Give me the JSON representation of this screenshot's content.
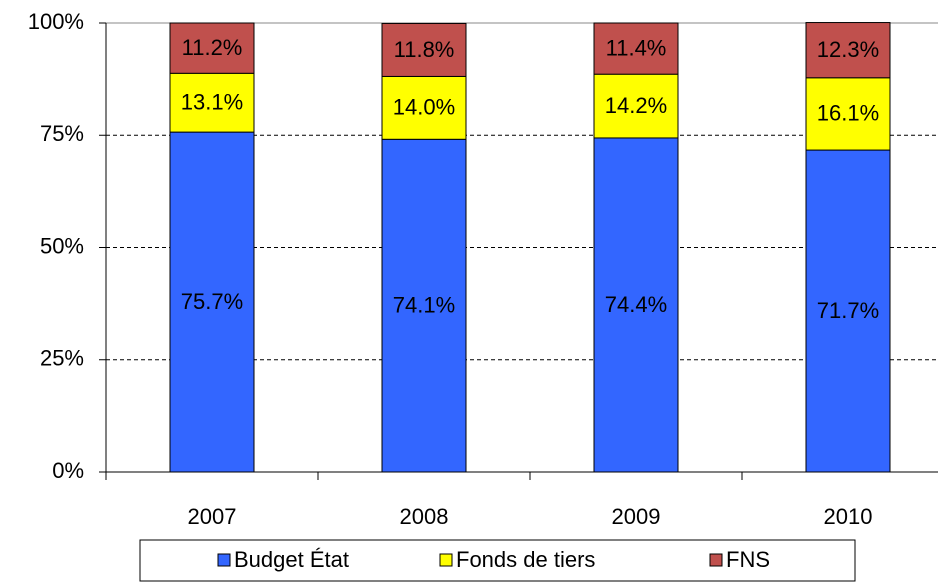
{
  "chart_data": {
    "type": "stacked_bar",
    "categories": [
      "2007",
      "2008",
      "2009",
      "2010"
    ],
    "series": [
      {
        "name": "Budget État",
        "color": "#3366ff",
        "values": [
          75.7,
          74.1,
          74.4,
          71.7
        ],
        "value_labels": [
          "75.7%",
          "74.1%",
          "74.4%",
          "71.7%"
        ]
      },
      {
        "name": "Fonds de tiers",
        "color": "#ffff00",
        "values": [
          13.1,
          14.0,
          14.2,
          16.1
        ],
        "value_labels": [
          "13.1%",
          "14.0%",
          "14.2%",
          "16.1%"
        ]
      },
      {
        "name": "FNS",
        "color": "#c0504d",
        "values": [
          11.2,
          11.8,
          11.4,
          12.3
        ],
        "value_labels": [
          "11.2%",
          "11.8%",
          "11.4%",
          "12.3%"
        ]
      }
    ],
    "ylim": [
      0,
      100
    ],
    "yticks": [
      {
        "value": 0,
        "label": "0%"
      },
      {
        "value": 25,
        "label": "25%"
      },
      {
        "value": 50,
        "label": "50%"
      },
      {
        "value": 75,
        "label": "75%"
      },
      {
        "value": 100,
        "label": "100%"
      }
    ],
    "grid": true,
    "legend": "bottom"
  }
}
